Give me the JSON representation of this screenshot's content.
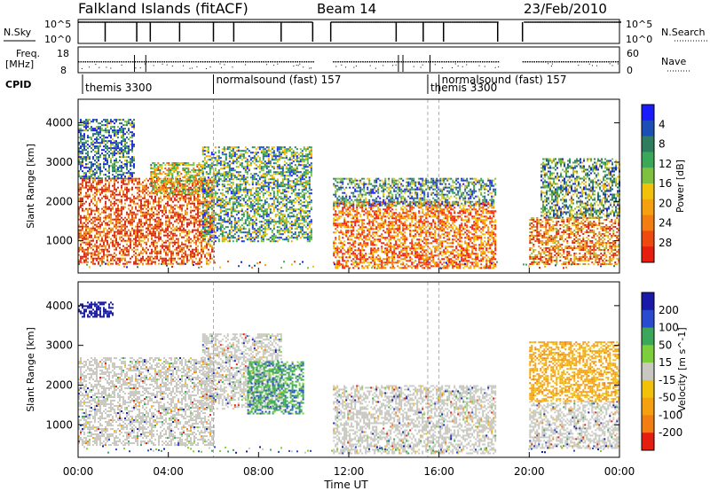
{
  "header": {
    "station": "Falkland Islands (fitACF)",
    "beam": "Beam 14",
    "date": "23/Feb/2010"
  },
  "top_panels": {
    "nsky_label": "N.Sky",
    "nsky_ticks": [
      "10^5",
      "10^0"
    ],
    "nsearch_label": "N.Search",
    "freq_label_1": "Freq.",
    "freq_label_2": "[MHz]",
    "freq_ticks": [
      "18",
      "8"
    ],
    "nave_label": "Nave",
    "nave_ticks": [
      "60",
      "0"
    ],
    "cpid_label": "CPID",
    "cpid_entries": [
      {
        "text": "themis 3300",
        "start_hour": 0.0
      },
      {
        "text": "normalsound (fast) 157",
        "start_hour": 6.0
      },
      {
        "text": "themis 3300",
        "start_hour": 15.5
      },
      {
        "text": "normalsound (fast) 157",
        "start_hour": 16.0
      }
    ]
  },
  "chart_data": [
    {
      "type": "heatmap",
      "name": "power",
      "xlabel": "Time UT",
      "ylabel": "Slant Range [km]",
      "x_ticks": [
        "00:00",
        "04:00",
        "08:00",
        "12:00",
        "16:00",
        "20:00",
        "00:00"
      ],
      "x_range_hours": [
        0,
        24
      ],
      "y_ticks": [
        1000,
        2000,
        3000,
        4000
      ],
      "y_range_km": [
        180,
        4600
      ],
      "colorbar_label": "Power [dB]",
      "colorbar_ticks": [
        "4",
        "8",
        "12",
        "16",
        "20",
        "24",
        "28"
      ],
      "colorbar_colors": [
        "#1a1aff",
        "#1b4fb5",
        "#2e7d5e",
        "#3aa858",
        "#80c040",
        "#f2c20a",
        "#f5a10f",
        "#f27d10",
        "#ee4a10",
        "#e61e10"
      ],
      "data_gaps_hours": [
        [
          10.4,
          11.2
        ],
        [
          18.6,
          19.7
        ]
      ],
      "scatter_regions": [
        {
          "t0": 0.0,
          "t1": 6.0,
          "r0": 400,
          "r1": 2600,
          "level": 0.85
        },
        {
          "t0": 3.2,
          "t1": 5.5,
          "r0": 2200,
          "r1": 3000,
          "level": 0.55
        },
        {
          "t0": 5.5,
          "t1": 10.3,
          "r0": 1000,
          "r1": 3400,
          "level": 0.35
        },
        {
          "t0": 11.3,
          "t1": 18.5,
          "r0": 300,
          "r1": 2000,
          "level": 0.8
        },
        {
          "t0": 11.3,
          "t1": 18.5,
          "r0": 1900,
          "r1": 2600,
          "level": 0.3
        },
        {
          "t0": 20.0,
          "t1": 24.0,
          "r0": 400,
          "r1": 1600,
          "level": 0.75
        },
        {
          "t0": 20.5,
          "t1": 24.0,
          "r0": 1600,
          "r1": 3100,
          "level": 0.35
        },
        {
          "t0": 0.0,
          "t1": 2.5,
          "r0": 2600,
          "r1": 4100,
          "level": 0.25
        }
      ]
    },
    {
      "type": "heatmap",
      "name": "velocity",
      "xlabel": "Time UT",
      "ylabel": "Slant Range [km]",
      "x_ticks": [
        "00:00",
        "04:00",
        "08:00",
        "12:00",
        "16:00",
        "20:00",
        "00:00"
      ],
      "x_range_hours": [
        0,
        24
      ],
      "y_ticks": [
        1000,
        2000,
        3000,
        4000
      ],
      "y_range_km": [
        180,
        4600
      ],
      "colorbar_label": "Velocity [m s^-1]",
      "colorbar_ticks": [
        "200",
        "100",
        "50",
        "15",
        "-15",
        "-50",
        "-100",
        "-200"
      ],
      "colorbar_colors": [
        "#1a1aaa",
        "#2a4bd0",
        "#3aa858",
        "#7ccf3a",
        "#c8c8c0",
        "#f2c20a",
        "#f5a10f",
        "#f27d10",
        "#e61e10"
      ],
      "data_gaps_hours": [
        [
          10.4,
          11.2
        ],
        [
          18.6,
          19.7
        ]
      ],
      "scatter_regions": [
        {
          "t0": 0.0,
          "t1": 6.0,
          "r0": 500,
          "r1": 2700,
          "level": 0.0
        },
        {
          "t0": 5.5,
          "t1": 9.0,
          "r0": 1400,
          "r1": 3300,
          "level": 0.0
        },
        {
          "t0": 7.5,
          "t1": 10.0,
          "r0": 1300,
          "r1": 2600,
          "level": 0.45
        },
        {
          "t0": 11.3,
          "t1": 18.5,
          "r0": 300,
          "r1": 2000,
          "level": 0.0
        },
        {
          "t0": 20.0,
          "t1": 24.0,
          "r0": 400,
          "r1": 1600,
          "level": 0.0
        },
        {
          "t0": 20.0,
          "t1": 24.0,
          "r0": 1600,
          "r1": 3100,
          "level": -0.4
        },
        {
          "t0": 0.0,
          "t1": 1.5,
          "r0": 3700,
          "r1": 4100,
          "level": 0.95
        }
      ]
    }
  ]
}
